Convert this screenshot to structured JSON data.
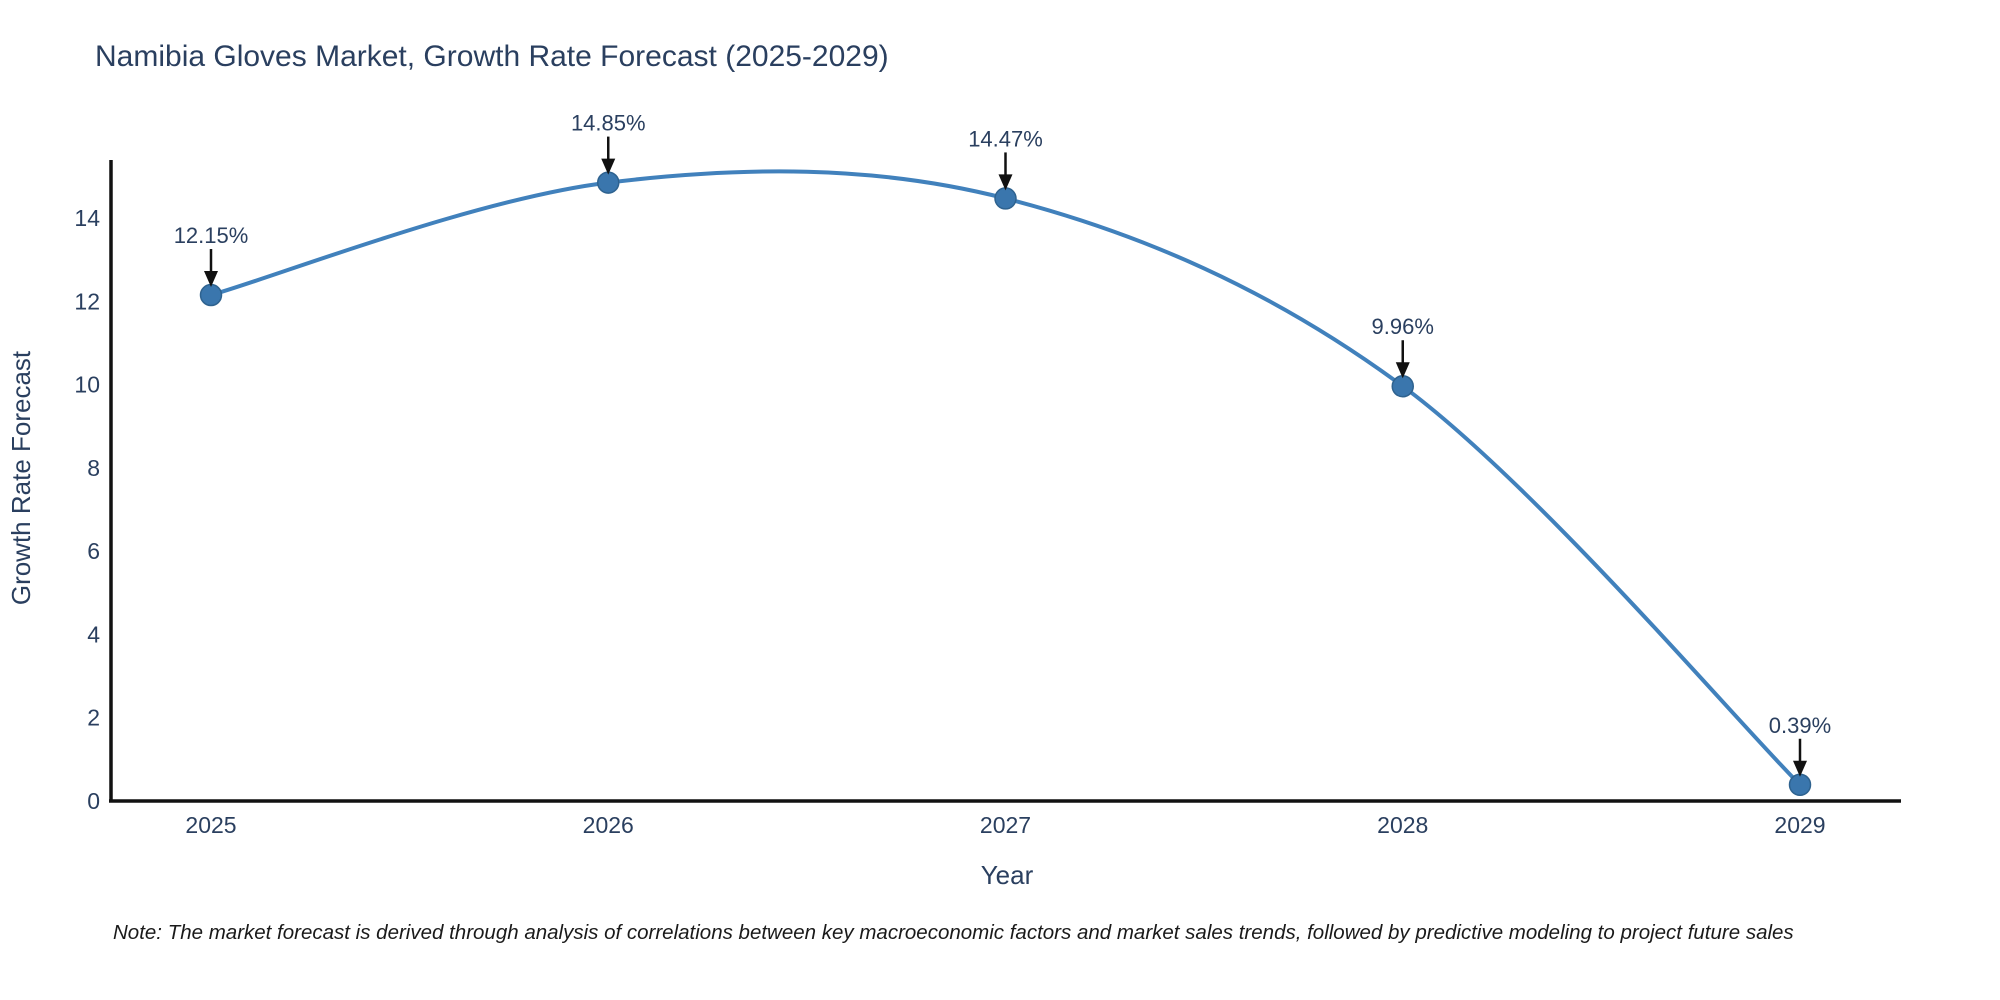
{
  "title": "Namibia Gloves Market, Growth Rate Forecast (2025-2029)",
  "note": "Note: The market forecast is derived through analysis of correlations between key macroeconomic factors and market sales trends, followed by predictive modeling to project future sales",
  "chart_data": {
    "type": "line",
    "line_shape": "spline",
    "title": "Namibia Gloves Market, Growth Rate Forecast (2025-2029)",
    "xlabel": "Year",
    "ylabel": "Growth Rate Forecast",
    "x": [
      "2025",
      "2026",
      "2027",
      "2028",
      "2029"
    ],
    "values": [
      12.15,
      14.85,
      14.47,
      9.96,
      0.39
    ],
    "point_labels": [
      "12.15%",
      "14.85%",
      "14.47%",
      "9.96%",
      "0.39%"
    ],
    "yticks": [
      0,
      2,
      4,
      6,
      8,
      10,
      12,
      14
    ],
    "ylim": [
      0,
      15.4
    ],
    "grid": false,
    "legend": "none",
    "colors": {
      "line": "#4181bc",
      "marker": "#3a76ad",
      "marker_edge": "#2e628f",
      "axis_line": "#111111",
      "tick_text": "#2a3f5f",
      "annotation_text": "#2a3f5f",
      "arrow": "#111111",
      "title_text": "#2a3f5f",
      "note_text": "#1a1a1a",
      "background": "#ffffff"
    }
  }
}
